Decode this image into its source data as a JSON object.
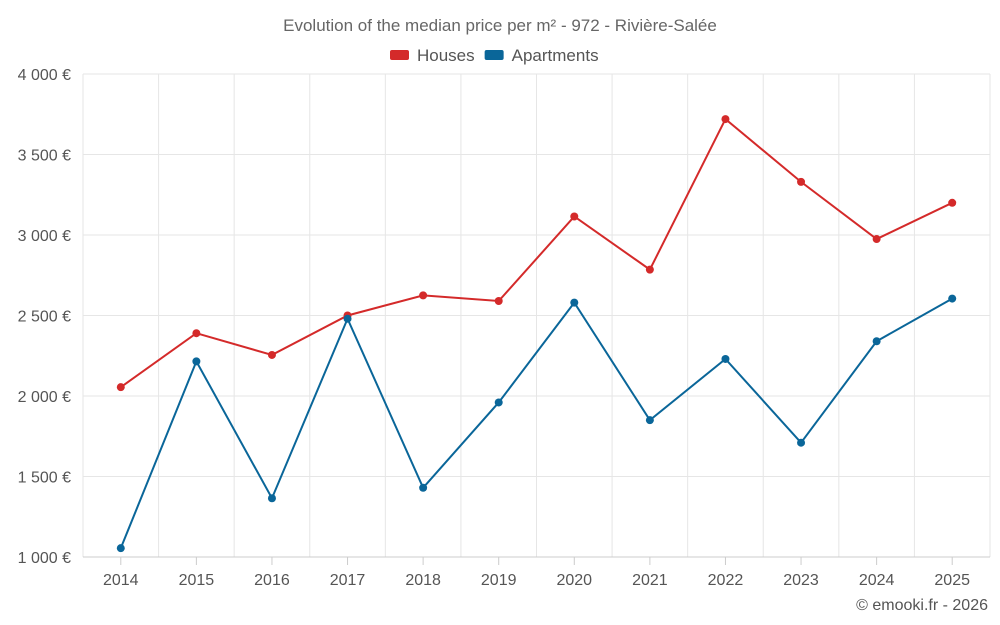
{
  "chart_data": {
    "type": "line",
    "title": "Evolution of the median price per m² - 972 - Rivière-Salée",
    "categories": [
      "2014",
      "2015",
      "2016",
      "2017",
      "2018",
      "2019",
      "2020",
      "2021",
      "2022",
      "2023",
      "2024",
      "2025"
    ],
    "ylim": [
      1000,
      4000
    ],
    "yticks": [
      1000,
      1500,
      2000,
      2500,
      3000,
      3500,
      4000
    ],
    "ytick_labels": [
      "1 000 €",
      "1 500 €",
      "2 000 €",
      "2 500 €",
      "3 000 €",
      "3 500 €",
      "4 000 €"
    ],
    "grid": true,
    "legend_position": "top-center",
    "series": [
      {
        "name": "Houses",
        "color": "#d42a2a",
        "values": [
          2055,
          2390,
          2255,
          2500,
          2625,
          2590,
          3115,
          2785,
          3720,
          3330,
          2975,
          3200
        ]
      },
      {
        "name": "Apartments",
        "color": "#0a6699",
        "values": [
          1055,
          2215,
          1365,
          2480,
          1430,
          1960,
          2580,
          1850,
          2230,
          1710,
          2340,
          2605
        ]
      }
    ],
    "credit": "© emooki.fr - 2026"
  }
}
